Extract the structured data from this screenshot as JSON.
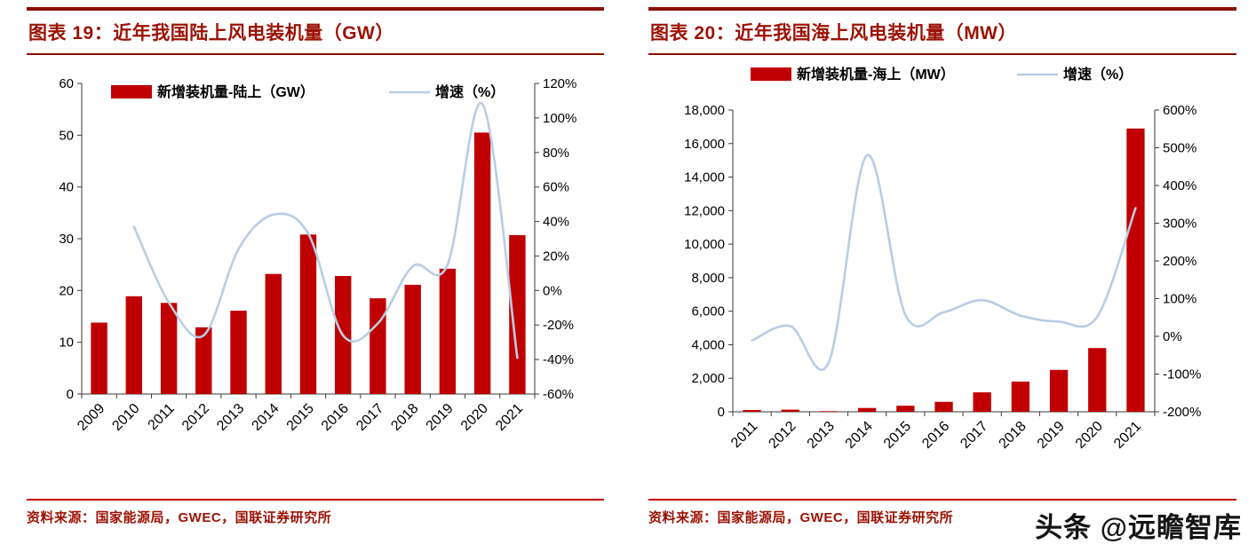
{
  "watermark": {
    "brand": "头条",
    "handle": "@远瞻智库"
  },
  "panels": [
    {
      "title": "图表 19：近年我国陆上风电装机量（GW）",
      "source": "资料来源：国家能源局，GWEC，国联证券研究所"
    },
    {
      "title": "图表 20：近年我国海上风电装机量（MW）",
      "source": "资料来源：国家能源局，GWEC，国联证券研究所"
    }
  ],
  "colors": {
    "bar": "#c00000",
    "line": "#b9cde5",
    "title_red": "#9b1104"
  },
  "chart_data": [
    {
      "type": "bar+line",
      "title": "近年我国陆上风电装机量（GW）",
      "categories": [
        "2009",
        "2010",
        "2011",
        "2012",
        "2013",
        "2014",
        "2015",
        "2016",
        "2017",
        "2018",
        "2019",
        "2020",
        "2021"
      ],
      "series": [
        {
          "name": "新增装机量-陆上（GW）",
          "type": "bar",
          "axis": "left",
          "values": [
            13.8,
            18.9,
            17.6,
            12.9,
            16.1,
            23.2,
            30.8,
            22.8,
            18.5,
            21.1,
            24.2,
            50.5,
            30.7
          ]
        },
        {
          "name": "增速（%）",
          "type": "line",
          "axis": "right",
          "values": [
            null,
            37,
            -7,
            -26,
            24,
            44,
            33,
            -26,
            -19,
            14,
            15,
            108,
            -39
          ]
        }
      ],
      "left_axis": {
        "min": 0,
        "max": 60,
        "tick_values": [
          0,
          10,
          20,
          30,
          40,
          50,
          60
        ],
        "tick_labels": [
          "0",
          "10",
          "20",
          "30",
          "40",
          "50",
          "60"
        ]
      },
      "right_axis": {
        "min": -60,
        "max": 120,
        "tick_values": [
          -60,
          -40,
          -20,
          0,
          20,
          40,
          60,
          80,
          100,
          120
        ],
        "tick_labels": [
          "-60%",
          "-40%",
          "-20%",
          "0%",
          "20%",
          "40%",
          "60%",
          "80%",
          "100%",
          "120%"
        ]
      },
      "grid": false,
      "legend_position": "top"
    },
    {
      "type": "bar+line",
      "title": "近年我国海上风电装机量（MW）",
      "categories": [
        "2011",
        "2012",
        "2013",
        "2014",
        "2015",
        "2016",
        "2017",
        "2018",
        "2019",
        "2020",
        "2021"
      ],
      "series": [
        {
          "name": "新增装机量-海上（MW）",
          "type": "bar",
          "axis": "left",
          "values": [
            107,
            127,
            39,
            229,
            360,
            592,
            1160,
            1800,
            2500,
            3800,
            16900
          ]
        },
        {
          "name": "增速（%）",
          "type": "line",
          "axis": "right",
          "values": [
            -11,
            27,
            -69,
            480,
            57,
            64,
            96,
            55,
            39,
            52,
            340
          ]
        }
      ],
      "left_axis": {
        "min": 0,
        "max": 18000,
        "tick_values": [
          0,
          2000,
          4000,
          6000,
          8000,
          10000,
          12000,
          14000,
          16000,
          18000
        ],
        "tick_labels": [
          "0",
          "2,000",
          "4,000",
          "6,000",
          "8,000",
          "10,000",
          "12,000",
          "14,000",
          "16,000",
          "18,000"
        ]
      },
      "right_axis": {
        "min": -200,
        "max": 600,
        "tick_values": [
          -200,
          -100,
          0,
          100,
          200,
          300,
          400,
          500,
          600
        ],
        "tick_labels": [
          "-200%",
          "-100%",
          "0%",
          "100%",
          "200%",
          "300%",
          "400%",
          "500%",
          "600%"
        ]
      },
      "grid": false,
      "legend_position": "top"
    }
  ]
}
